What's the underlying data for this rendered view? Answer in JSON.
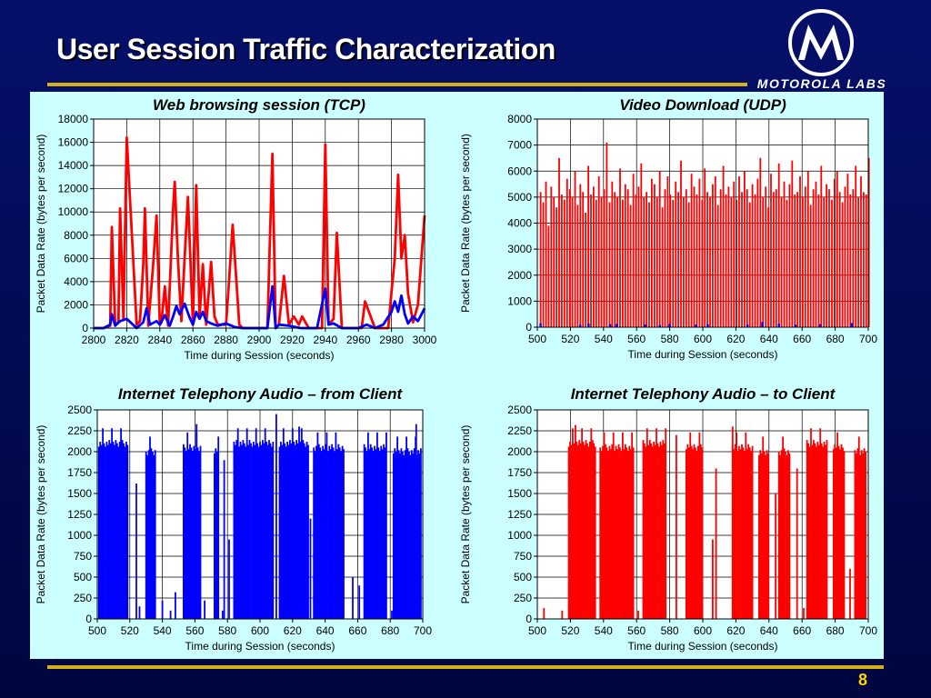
{
  "slide": {
    "title": "User Session Traffic Characterization",
    "brand": "MOTOROLA LABS",
    "page_number": "8"
  },
  "chart_data": [
    {
      "type": "line",
      "title": "Web browsing session (TCP)",
      "xlabel": "Time during Session (seconds)",
      "ylabel": "Packet Data Rate (bytes per second)",
      "xlim": [
        2800,
        3000
      ],
      "ylim": [
        0,
        18000
      ],
      "xticks": [
        2800,
        2820,
        2840,
        2860,
        2880,
        2900,
        2920,
        2940,
        2960,
        2980,
        3000
      ],
      "yticks": [
        0,
        2000,
        4000,
        6000,
        8000,
        10000,
        12000,
        14000,
        16000,
        18000
      ],
      "grid": true,
      "series": [
        {
          "color": "#ff0000",
          "x": [
            2800,
            2806,
            2810,
            2811,
            2813,
            2815,
            2816,
            2818,
            2820,
            2826,
            2828,
            2830,
            2831,
            2833,
            2836,
            2838,
            2840,
            2841,
            2843,
            2845,
            2848,
            2849,
            2851,
            2853,
            2855,
            2857,
            2859,
            2860,
            2862,
            2864,
            2866,
            2868,
            2871,
            2873,
            2875,
            2880,
            2882,
            2884,
            2888,
            2890,
            2892,
            2894,
            2905,
            2908,
            2910,
            2912,
            2915,
            2918,
            2921,
            2924,
            2926,
            2930,
            2935,
            2938,
            2940,
            2942,
            2945,
            2947,
            2950,
            2960,
            2962,
            2964,
            2970,
            2978,
            2980,
            2982,
            2984,
            2986,
            2988,
            2990,
            2993,
            2996,
            3000
          ],
          "y": [
            0,
            0,
            200,
            8700,
            300,
            500,
            10300,
            700,
            16400,
            300,
            600,
            5500,
            10300,
            200,
            5500,
            9700,
            300,
            500,
            3600,
            200,
            10300,
            12600,
            5800,
            600,
            6100,
            11300,
            4000,
            300,
            12300,
            1000,
            5500,
            300,
            5700,
            1000,
            300,
            300,
            4400,
            8900,
            300,
            0,
            0,
            0,
            0,
            15000,
            0,
            300,
            4500,
            300,
            1000,
            300,
            1000,
            0,
            0,
            0,
            15800,
            300,
            800,
            8200,
            0,
            0,
            0,
            2300,
            0,
            0,
            3100,
            6000,
            13200,
            6000,
            8000,
            3000,
            500,
            2000,
            9700
          ]
        },
        {
          "color": "#0000ff",
          "x": [
            2800,
            2806,
            2810,
            2811,
            2813,
            2816,
            2818,
            2820,
            2826,
            2830,
            2832,
            2834,
            2838,
            2840,
            2843,
            2846,
            2848,
            2850,
            2852,
            2855,
            2858,
            2860,
            2862,
            2864,
            2866,
            2868,
            2871,
            2875,
            2880,
            2885,
            2890,
            2900,
            2905,
            2908,
            2910,
            2912,
            2918,
            2925,
            2935,
            2940,
            2942,
            2945,
            2950,
            2960,
            2965,
            2970,
            2975,
            2980,
            2982,
            2984,
            2986,
            2988,
            2990,
            2993,
            2996,
            3000
          ],
          "y": [
            0,
            0,
            300,
            1200,
            200,
            600,
            700,
            800,
            0,
            500,
            1700,
            300,
            600,
            300,
            1100,
            200,
            1000,
            1900,
            1200,
            2100,
            900,
            300,
            1400,
            800,
            1400,
            600,
            400,
            200,
            400,
            100,
            0,
            0,
            0,
            3600,
            0,
            300,
            200,
            0,
            0,
            3400,
            300,
            400,
            0,
            0,
            300,
            0,
            300,
            1400,
            2300,
            1400,
            2800,
            1200,
            400,
            1000,
            600,
            1700
          ]
        }
      ]
    },
    {
      "type": "bar",
      "title": "Video Download (UDP)",
      "xlabel": "Time during Session (seconds)",
      "ylabel": "Packet Data Rate (bytes per second)",
      "xlim": [
        500,
        700
      ],
      "ylim": [
        0,
        8000
      ],
      "xticks": [
        500,
        520,
        540,
        560,
        580,
        600,
        620,
        640,
        660,
        680,
        700
      ],
      "yticks": [
        0,
        1000,
        2000,
        3000,
        4000,
        5000,
        6000,
        7000,
        8000
      ],
      "grid": true,
      "series": [
        {
          "color": "#ff0000",
          "x_start": 502,
          "x_step": 1.6,
          "values": [
            5200,
            4800,
            5600,
            3900,
            5400,
            5000,
            4600,
            6500,
            5100,
            4900,
            5700,
            5300,
            5000,
            6000,
            4700,
            5500,
            5200,
            4400,
            6200,
            5100,
            5400,
            4900,
            5800,
            5000,
            5300,
            7100,
            4800,
            5600,
            5200,
            5000,
            6100,
            4900,
            5500,
            5300,
            4700,
            5900,
            5100,
            5400,
            6300,
            5000,
            5200,
            4800,
            5700,
            5500,
            5000,
            6000,
            4600,
            5300,
            5800,
            5100,
            4900,
            5600,
            5200,
            6400,
            5000,
            5300,
            4800,
            5900,
            5400,
            5100,
            5700,
            4900,
            6100,
            5200,
            5000,
            5500,
            5800,
            4700,
            5300,
            6200,
            5100,
            5400,
            5000,
            5600,
            4900,
            5800,
            5200,
            6000,
            5300,
            4800,
            5500,
            5100,
            5700,
            6500,
            5000,
            5400,
            4600,
            5900,
            5200,
            5300,
            6300,
            5000,
            5600,
            4900,
            5500,
            6400,
            5100,
            5200,
            5800,
            5000,
            5400,
            6000,
            4700,
            5300,
            5600,
            5100,
            6200,
            5000,
            5500,
            5300,
            4900,
            5700,
            6000,
            5200,
            4800,
            5400,
            5900,
            5100,
            5300,
            6200,
            5000,
            5800,
            5200,
            5100,
            6500
          ]
        },
        {
          "color": "#0000ff",
          "x": [
            502,
            526,
            531,
            544,
            548,
            565,
            574,
            580,
            596,
            603,
            627,
            636,
            646,
            656,
            671,
            690
          ],
          "values": [
            150,
            100,
            140,
            120,
            130,
            110,
            90,
            130,
            100,
            120,
            100,
            200,
            140,
            100,
            120,
            160
          ]
        }
      ]
    },
    {
      "type": "bar",
      "title": "Internet Telephony Audio – from Client",
      "xlabel": "Time during Session (seconds)",
      "ylabel": "Packet Data Rate (bytes per second)",
      "xlim": [
        500,
        700
      ],
      "ylim": [
        0,
        2500
      ],
      "xticks": [
        500,
        520,
        540,
        560,
        580,
        600,
        620,
        640,
        660,
        680,
        700
      ],
      "yticks": [
        0,
        250,
        500,
        750,
        1000,
        1250,
        1500,
        1750,
        2000,
        2250,
        2500
      ],
      "grid": true,
      "series": [
        {
          "color": "#0000ff",
          "bursts": [
            [
              501,
              519,
              2100
            ],
            [
              530,
              536,
              2000
            ],
            [
              553,
              564,
              2050
            ],
            [
              572,
              575,
              2000
            ],
            [
              584,
              608,
              2100
            ],
            [
              612,
              630,
              2100
            ],
            [
              633,
              652,
              2050
            ],
            [
              664,
              678,
              2050
            ],
            [
              682,
              699,
              2000
            ]
          ],
          "isolated": [
            [
              524,
              1620
            ],
            [
              526,
              150
            ],
            [
              540,
              220
            ],
            [
              545,
              100
            ],
            [
              548,
              320
            ],
            [
              561,
              2330
            ],
            [
              566,
              220
            ],
            [
              573,
              950
            ],
            [
              577,
              100
            ],
            [
              578,
              1900
            ],
            [
              581,
              950
            ],
            [
              610,
              2450
            ],
            [
              618,
              100
            ],
            [
              624,
              2300
            ],
            [
              631,
              1200
            ],
            [
              657,
              500
            ],
            [
              661,
              400
            ],
            [
              681,
              100
            ],
            [
              696,
              2330
            ]
          ]
        }
      ]
    },
    {
      "type": "bar",
      "title": "Internet Telephony Audio – to Client",
      "xlabel": "Time during Session (seconds)",
      "ylabel": "Packet Data Rate (bytes per second)",
      "xlim": [
        500,
        700
      ],
      "ylim": [
        0,
        2500
      ],
      "xticks": [
        500,
        520,
        540,
        560,
        580,
        600,
        620,
        640,
        660,
        680,
        700
      ],
      "yticks": [
        0,
        250,
        500,
        750,
        1000,
        1250,
        1500,
        1750,
        2000,
        2250,
        2500
      ],
      "grid": true,
      "series": [
        {
          "color": "#ff0000",
          "bursts": [
            [
              519,
              535,
              2100
            ],
            [
              538,
              558,
              2050
            ],
            [
              564,
              578,
              2100
            ],
            [
              590,
              600,
              2050
            ],
            [
              618,
              630,
              2050
            ],
            [
              634,
              640,
              2000
            ],
            [
              646,
              653,
              2000
            ],
            [
              663,
              675,
              2100
            ],
            [
              679,
              686,
              2050
            ],
            [
              692,
              699,
              2000
            ]
          ],
          "isolated": [
            [
              504,
              130
            ],
            [
              515,
              100
            ],
            [
              523,
              2320
            ],
            [
              544,
              1600
            ],
            [
              561,
              100
            ],
            [
              584,
              2200
            ],
            [
              606,
              950
            ],
            [
              608,
              1800
            ],
            [
              618,
              2300
            ],
            [
              644,
              1500
            ],
            [
              657,
              1800
            ],
            [
              661,
              130
            ],
            [
              689,
              600
            ],
            [
              698,
              1700
            ]
          ]
        }
      ]
    }
  ]
}
